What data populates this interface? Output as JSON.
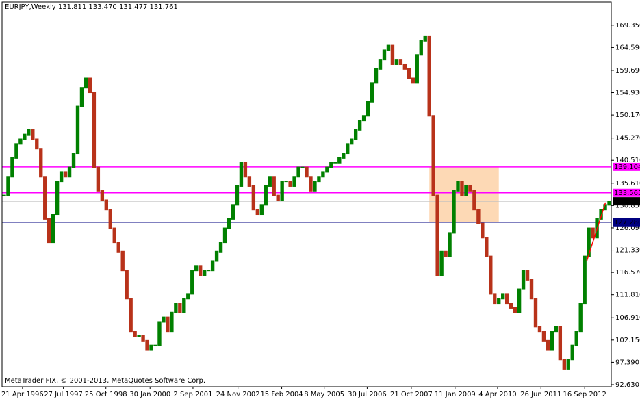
{
  "chart_data": {
    "type": "candlestick",
    "title": "EURJPY,Weekly  131.811 133.470 131.477 131.761",
    "footer": "MetaTrader FIX, © 2001-2013, MetaQuotes Software Corp.",
    "up_color": "#008000",
    "down_color": "#b8321a",
    "values": [
      133,
      137,
      141,
      144,
      145,
      146,
      147,
      145,
      143,
      137,
      128,
      123,
      129,
      136,
      138,
      137,
      139,
      142,
      152,
      156,
      158,
      155,
      139,
      134,
      132,
      130,
      126,
      123,
      121,
      117,
      111,
      104,
      103,
      103,
      102,
      100,
      101,
      101,
      106,
      107,
      104,
      108,
      110,
      108,
      111,
      112,
      117,
      118,
      116,
      117,
      117,
      119,
      121,
      123,
      126,
      128,
      131,
      135,
      140,
      137,
      135,
      130,
      129,
      131,
      135,
      137,
      133,
      132,
      136,
      136,
      135,
      137,
      139,
      139,
      137,
      134,
      136,
      137,
      138,
      139,
      140,
      140,
      141,
      142,
      144,
      145,
      147,
      149,
      150,
      153,
      157,
      160,
      162,
      164,
      165,
      161,
      162,
      161,
      160,
      158,
      157,
      163,
      166,
      167,
      150,
      133,
      116,
      121,
      120,
      125,
      134,
      136,
      133,
      135,
      134,
      130,
      127,
      124,
      120,
      112,
      110,
      111,
      112,
      110,
      109,
      108,
      113,
      117,
      115,
      111,
      105,
      104,
      102,
      100,
      104,
      105,
      98,
      96,
      98,
      101,
      104,
      110,
      120,
      126,
      124,
      128,
      130,
      131,
      131.761
    ],
    "xlim": [
      0,
      149
    ],
    "xticks": [
      {
        "value": 5,
        "label": "21 Apr 1996"
      },
      {
        "value": 15,
        "label": "27 Jul 1997"
      },
      {
        "value": 25.4,
        "label": "25 Oct 1998"
      },
      {
        "value": 36.2,
        "label": "30 Jan 2000"
      },
      {
        "value": 46.7,
        "label": "2 Sep 2001"
      },
      {
        "value": 57.7,
        "label": "24 Nov 2002"
      },
      {
        "value": 68.4,
        "label": "15 Feb 2004"
      },
      {
        "value": 78.8,
        "label": "8 May 2005"
      },
      {
        "value": 89.3,
        "label": "30 Jul 2006"
      },
      {
        "value": 100.1,
        "label": "21 Oct 2007"
      },
      {
        "value": 110.8,
        "label": "11 Jan 2009"
      },
      {
        "value": 121.2,
        "label": "4 Apr 2010"
      },
      {
        "value": 131.8,
        "label": "26 Jun 2011"
      },
      {
        "value": 142.5,
        "label": "16 Sep 2012"
      }
    ],
    "ylim": [
      92.19,
      174.29
    ],
    "yticks": [
      {
        "value": 169.35,
        "label": "169.350"
      },
      {
        "value": 164.59,
        "label": "164.590"
      },
      {
        "value": 159.69,
        "label": "159.690"
      },
      {
        "value": 154.93,
        "label": "154.930"
      },
      {
        "value": 150.17,
        "label": "150.170"
      },
      {
        "value": 145.27,
        "label": "145.270"
      },
      {
        "value": 140.51,
        "label": "140.510"
      },
      {
        "value": 135.61,
        "label": "135.610"
      },
      {
        "value": 130.85,
        "label": "130.850"
      },
      {
        "value": 126.09,
        "label": "126.090"
      },
      {
        "value": 121.33,
        "label": "121.330"
      },
      {
        "value": 116.57,
        "label": "116.570"
      },
      {
        "value": 111.81,
        "label": "111.810"
      },
      {
        "value": 106.91,
        "label": "106.910"
      },
      {
        "value": 102.15,
        "label": "102.150"
      },
      {
        "value": 97.39,
        "label": "97.390"
      },
      {
        "value": 92.63,
        "label": "92.630"
      }
    ],
    "levels": [
      {
        "value": 139.104,
        "label": "139.104",
        "color": "#ff00ff"
      },
      {
        "value": 133.565,
        "label": "133.565",
        "color": "#ff00ff"
      },
      {
        "value": 127.28,
        "label": "127.280",
        "color": "#000080"
      }
    ],
    "current_price": {
      "value": 131.761,
      "label": "131.761",
      "color": "#c0c0c0"
    },
    "zone": {
      "x": [
        104.5,
        121.5
      ],
      "values": [
        139.104,
        127.28
      ],
      "color": "#fdd9b5"
    },
    "trendline": {
      "x": [
        143,
        147.6
      ],
      "values": [
        119,
        131.5
      ],
      "color": "#ff0000"
    }
  }
}
